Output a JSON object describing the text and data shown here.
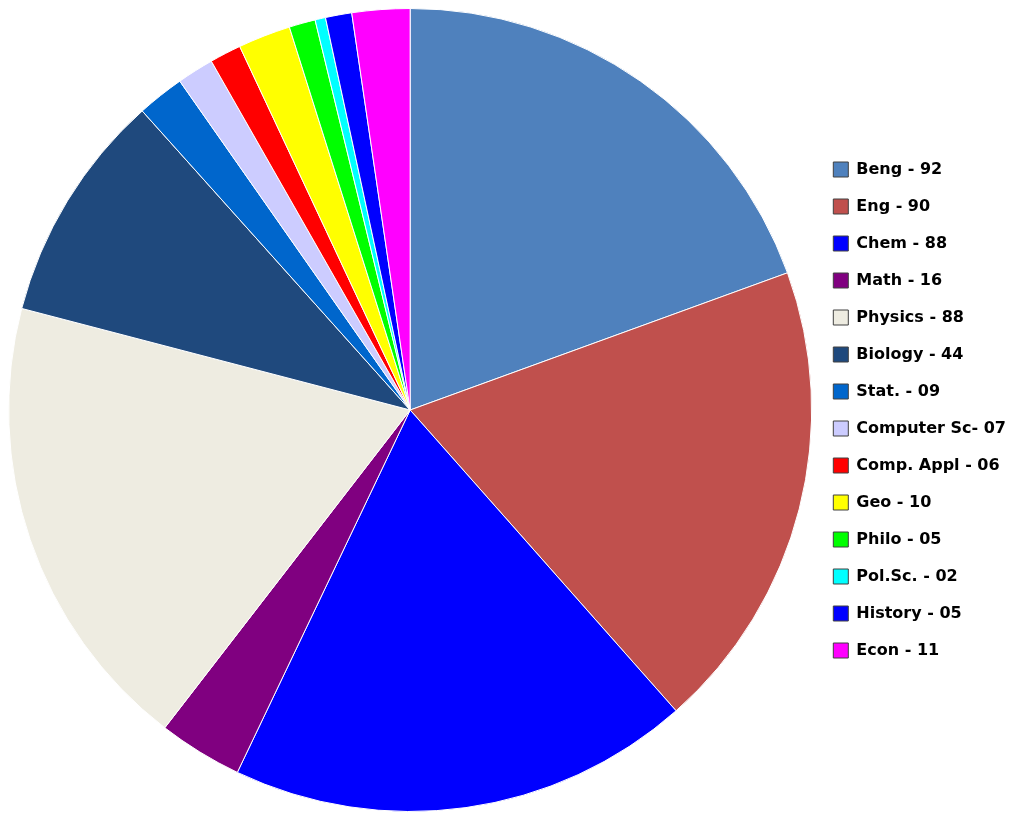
{
  "chart_data": {
    "type": "pie",
    "categories": [
      "Beng -",
      "Eng -",
      "Chem -",
      "Math -",
      "Physics -",
      "Biology -",
      "Stat. -",
      "Computer Sc-",
      "Comp. Appl -",
      "Geo -",
      "Philo -",
      "Pol.Sc. -",
      "History -",
      "Econ -"
    ],
    "values": [
      92,
      90,
      88,
      16,
      88,
      44,
      9,
      7,
      6,
      10,
      5,
      2,
      5,
      11
    ],
    "value_labels": [
      "92",
      "90",
      "88",
      "16",
      "88",
      "44",
      "09",
      "07",
      "06",
      "10",
      "05",
      "02",
      "05",
      "11"
    ],
    "colors": [
      "#4f81bd",
      "#c0504d",
      "#0000ff",
      "#800080",
      "#eeece1",
      "#1f497d",
      "#0066cc",
      "#ccccff",
      "#ff0000",
      "#ffff00",
      "#00ff00",
      "#00ffff",
      "#0000ff",
      "#ff00ff"
    ],
    "legend": "right"
  }
}
